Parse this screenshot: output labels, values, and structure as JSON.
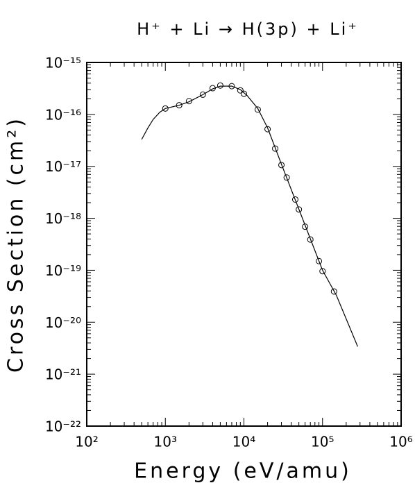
{
  "chart_data": {
    "type": "scatter",
    "title": "H⁺ + Li → H(3p) + Li⁺",
    "x_label": "Energy (eV/amu)",
    "y_label": "Cross Section (cm²)",
    "xscale": "log",
    "yscale": "log",
    "xlim": [
      100,
      1000000
    ],
    "ylim": [
      1e-22,
      1e-15
    ],
    "xticks": [
      {
        "value": 100,
        "label": "10²"
      },
      {
        "value": 1000,
        "label": "10³"
      },
      {
        "value": 10000,
        "label": "10⁴"
      },
      {
        "value": 100000,
        "label": "10⁵"
      },
      {
        "value": 1000000,
        "label": "10⁶"
      }
    ],
    "yticks": [
      {
        "value": 1e-22,
        "label": "10⁻²²"
      },
      {
        "value": 1e-21,
        "label": "10⁻²¹"
      },
      {
        "value": 1e-20,
        "label": "10⁻²⁰"
      },
      {
        "value": 1e-19,
        "label": "10⁻¹⁹"
      },
      {
        "value": 1e-18,
        "label": "10⁻¹⁸"
      },
      {
        "value": 1e-17,
        "label": "10⁻¹⁷"
      },
      {
        "value": 1e-16,
        "label": "10⁻¹⁶"
      },
      {
        "value": 1e-15,
        "label": "10⁻¹⁵"
      }
    ],
    "series": [
      {
        "style": "line",
        "color": "#000000",
        "x": [
          500,
          600,
          700,
          850,
          1000,
          1500,
          2000,
          3000,
          4000,
          5000,
          7000,
          9000,
          11000,
          15000,
          20000,
          30000,
          50000,
          100000,
          150000,
          280000
        ],
        "values": [
          3.3e-17,
          5.5e-17,
          8e-17,
          1.1e-16,
          1.3e-16,
          1.5e-16,
          1.75e-16,
          2.4e-16,
          3.1e-16,
          3.5e-16,
          3.5e-16,
          3e-16,
          2.3e-16,
          1.3e-16,
          5.5e-17,
          1.1e-17,
          1.5e-18,
          1e-19,
          3.3e-20,
          3.4e-21
        ]
      },
      {
        "style": "markers",
        "color": "#000000",
        "x": [
          1000,
          1500,
          2000,
          3000,
          4000,
          5000,
          7000,
          9000,
          10000,
          15000,
          20000,
          25000,
          30000,
          35000,
          45000,
          50000,
          60000,
          70000,
          90000,
          100000,
          140000
        ],
        "values": [
          1.3e-16,
          1.5e-16,
          1.8e-16,
          2.4e-16,
          3.2e-16,
          3.6e-16,
          3.5e-16,
          2.9e-16,
          2.5e-16,
          1.24e-16,
          5.2e-17,
          2.2e-17,
          1.06e-17,
          6.1e-18,
          2.3e-18,
          1.48e-18,
          6.9e-19,
          3.9e-19,
          1.5e-19,
          9.6e-20,
          3.9e-20
        ]
      }
    ]
  }
}
